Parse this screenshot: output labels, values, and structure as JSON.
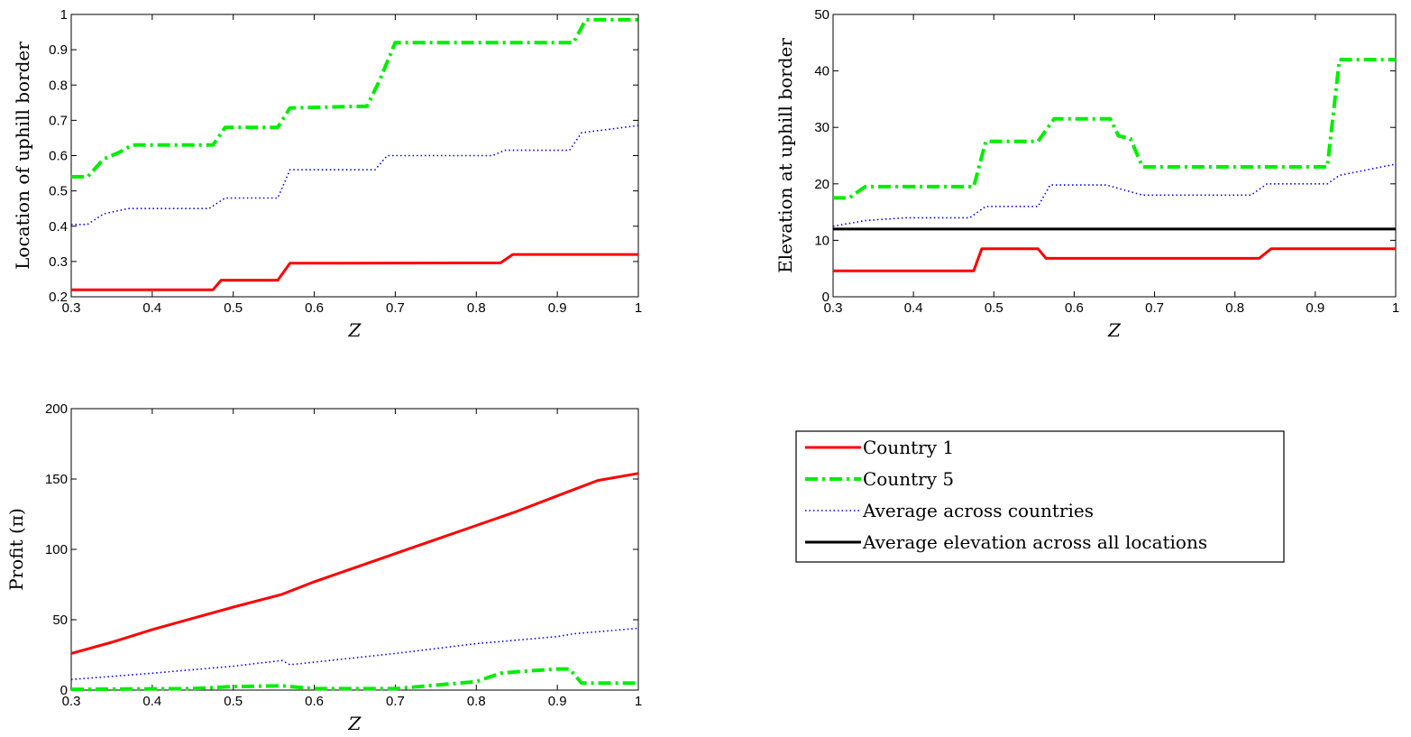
{
  "chart_data": [
    {
      "type": "line",
      "xlabel": "Z",
      "ylabel": "Location of uphill border",
      "xlim": [
        0.3,
        1
      ],
      "ylim": [
        0.2,
        1
      ],
      "xticks": [
        "0.3",
        "0.4",
        "0.5",
        "0.6",
        "0.7",
        "0.8",
        "0.9",
        "1"
      ],
      "yticks": [
        "0.2",
        "0.3",
        "0.4",
        "0.5",
        "0.6",
        "0.7",
        "0.8",
        "0.9",
        "1"
      ],
      "grid": false,
      "series": [
        {
          "name": "Country 1",
          "color": "#ff0000",
          "style": "solid",
          "x": [
            0.3,
            0.475,
            0.485,
            0.555,
            0.57,
            0.83,
            0.845,
            1.0
          ],
          "y": [
            0.22,
            0.22,
            0.247,
            0.247,
            0.295,
            0.296,
            0.32,
            0.32
          ]
        },
        {
          "name": "Country 5",
          "color": "#00ee00",
          "style": "dashdot",
          "x": [
            0.3,
            0.32,
            0.34,
            0.36,
            0.375,
            0.475,
            0.49,
            0.555,
            0.57,
            0.665,
            0.68,
            0.7,
            0.92,
            0.935,
            1.0
          ],
          "y": [
            0.54,
            0.54,
            0.59,
            0.61,
            0.63,
            0.63,
            0.68,
            0.68,
            0.735,
            0.74,
            0.81,
            0.92,
            0.92,
            0.985,
            0.985
          ]
        },
        {
          "name": "Average across countries",
          "color": "#0000ff",
          "style": "dotted",
          "x": [
            0.3,
            0.32,
            0.34,
            0.37,
            0.47,
            0.49,
            0.555,
            0.57,
            0.675,
            0.69,
            0.82,
            0.835,
            0.915,
            0.93,
            1.0
          ],
          "y": [
            0.405,
            0.405,
            0.435,
            0.45,
            0.45,
            0.48,
            0.48,
            0.56,
            0.56,
            0.6,
            0.6,
            0.615,
            0.615,
            0.665,
            0.685
          ]
        }
      ]
    },
    {
      "type": "line",
      "xlabel": "Z",
      "ylabel": "Elevation at uphill border",
      "xlim": [
        0.3,
        1
      ],
      "ylim": [
        0,
        50
      ],
      "xticks": [
        "0.3",
        "0.4",
        "0.5",
        "0.6",
        "0.7",
        "0.8",
        "0.9",
        "1"
      ],
      "yticks": [
        "0",
        "10",
        "20",
        "30",
        "40",
        "50"
      ],
      "grid": false,
      "series": [
        {
          "name": "Country 1",
          "color": "#ff0000",
          "style": "solid",
          "x": [
            0.3,
            0.475,
            0.485,
            0.555,
            0.565,
            0.69,
            0.83,
            0.845,
            1.0
          ],
          "y": [
            4.6,
            4.6,
            8.5,
            8.5,
            6.8,
            6.8,
            6.8,
            8.5,
            8.5
          ]
        },
        {
          "name": "Country 5",
          "color": "#00ee00",
          "style": "dashdot",
          "x": [
            0.3,
            0.32,
            0.34,
            0.475,
            0.49,
            0.555,
            0.575,
            0.645,
            0.655,
            0.67,
            0.685,
            0.915,
            0.93,
            1.0
          ],
          "y": [
            17.5,
            17.5,
            19.5,
            19.5,
            27.5,
            27.5,
            31.5,
            31.5,
            28.5,
            28.0,
            23.0,
            23.0,
            42.0,
            42.0
          ]
        },
        {
          "name": "Average across countries",
          "color": "#0000ff",
          "style": "dotted",
          "x": [
            0.3,
            0.34,
            0.39,
            0.47,
            0.49,
            0.555,
            0.57,
            0.64,
            0.685,
            0.82,
            0.84,
            0.915,
            0.93,
            1.0
          ],
          "y": [
            12.5,
            13.5,
            14.0,
            14.0,
            16.0,
            16.0,
            19.8,
            19.8,
            18.0,
            18.0,
            20.0,
            20.0,
            21.5,
            23.5
          ]
        },
        {
          "name": "Average elevation across all locations",
          "color": "#000000",
          "style": "solid",
          "x": [
            0.3,
            1.0
          ],
          "y": [
            12.0,
            12.0
          ]
        }
      ]
    },
    {
      "type": "line",
      "xlabel": "Z",
      "ylabel": "Profit (π)",
      "xlim": [
        0.3,
        1
      ],
      "ylim": [
        0,
        200
      ],
      "xticks": [
        "0.3",
        "0.4",
        "0.5",
        "0.6",
        "0.7",
        "0.8",
        "0.9",
        "1"
      ],
      "yticks": [
        "0",
        "50",
        "100",
        "150",
        "200"
      ],
      "grid": false,
      "series": [
        {
          "name": "Country 1",
          "color": "#ff0000",
          "style": "solid",
          "x": [
            0.3,
            0.35,
            0.4,
            0.45,
            0.5,
            0.56,
            0.6,
            0.65,
            0.7,
            0.75,
            0.8,
            0.85,
            0.9,
            0.95,
            1.0
          ],
          "y": [
            26,
            34,
            43,
            51,
            59,
            68,
            77,
            87,
            97,
            107,
            117,
            127,
            138,
            149,
            154
          ]
        },
        {
          "name": "Country 5",
          "color": "#00ee00",
          "style": "dashdot",
          "x": [
            0.3,
            0.45,
            0.5,
            0.56,
            0.6,
            0.7,
            0.8,
            0.83,
            0.85,
            0.9,
            0.915,
            0.93,
            1.0
          ],
          "y": [
            0.5,
            1.0,
            2.5,
            3.0,
            1.0,
            1.0,
            6.0,
            12.0,
            13.0,
            15.0,
            15.0,
            5.0,
            5.0
          ]
        },
        {
          "name": "Average across countries",
          "color": "#0000ff",
          "style": "dotted",
          "x": [
            0.3,
            0.4,
            0.5,
            0.56,
            0.57,
            0.7,
            0.8,
            0.9,
            0.92,
            1.0
          ],
          "y": [
            7.5,
            12.0,
            17.0,
            21.0,
            18.0,
            26.0,
            33.0,
            38.0,
            40.0,
            44.0
          ]
        }
      ]
    }
  ],
  "legend": {
    "entries": [
      {
        "label": "Country 1",
        "color": "#ff0000",
        "style": "solid"
      },
      {
        "label": "Country 5",
        "color": "#00ee00",
        "style": "dashdot"
      },
      {
        "label": "Average across countries",
        "color": "#0000ff",
        "style": "dotted"
      },
      {
        "label": "Average elevation across all locations",
        "color": "#000000",
        "style": "solid"
      }
    ]
  }
}
